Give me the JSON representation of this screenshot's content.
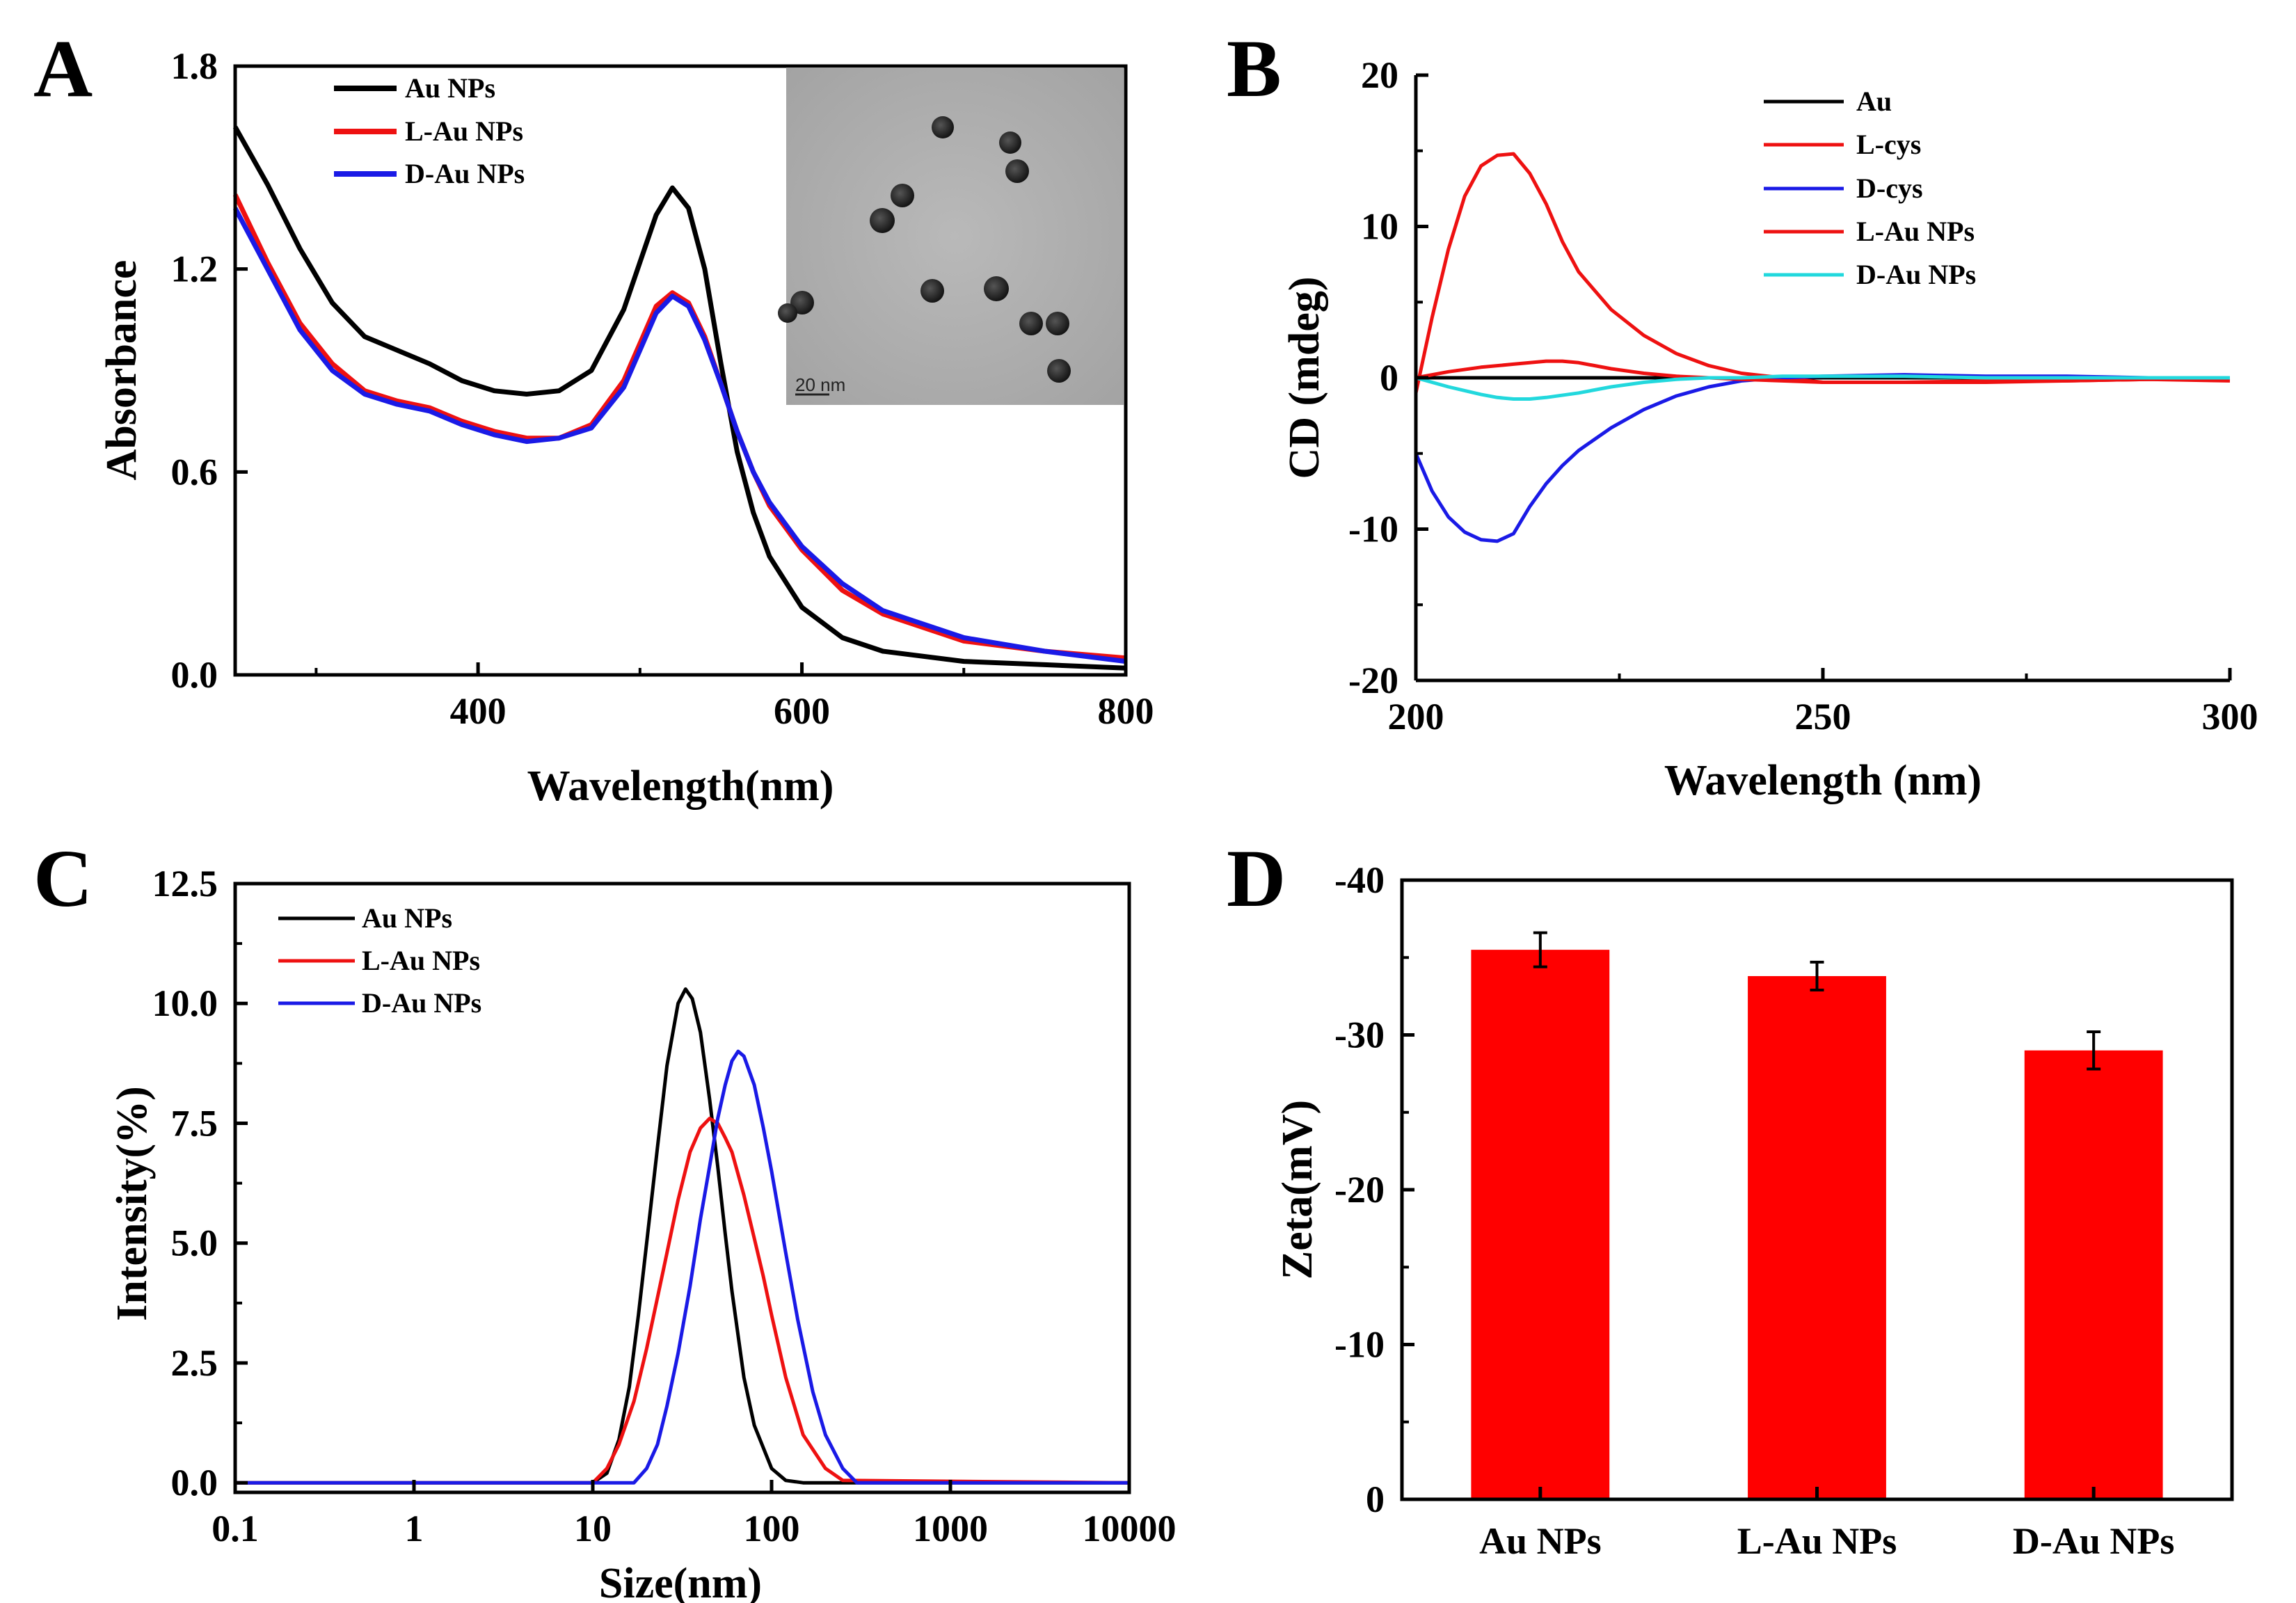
{
  "colors": {
    "black": "#000000",
    "red": "#ee1111",
    "blue": "#1a1ae6",
    "cyan": "#22d8dd",
    "bar": "#ff0000"
  },
  "chart_data": [
    {
      "panel": "A",
      "type": "line",
      "xlabel": "Wavelength(nm)",
      "ylabel": "Absorbance",
      "xlim": [
        250,
        800
      ],
      "ylim": [
        0.0,
        1.8
      ],
      "xticks": [
        400,
        600,
        800
      ],
      "yticks": [
        0.0,
        0.6,
        1.2,
        1.8
      ],
      "ytick_labels": [
        "0.0",
        "0.6",
        "1.2",
        "1.8"
      ],
      "inset": {
        "description": "TEM image of Au nanoparticles",
        "scale_bar": "20 nm"
      },
      "series": [
        {
          "name": "Au NPs",
          "color": "#000000",
          "x": [
            250,
            270,
            290,
            310,
            330,
            350,
            370,
            390,
            410,
            430,
            450,
            470,
            490,
            500,
            510,
            520,
            530,
            540,
            550,
            560,
            570,
            580,
            600,
            625,
            650,
            700,
            750,
            800
          ],
          "y": [
            1.62,
            1.45,
            1.26,
            1.1,
            1.0,
            0.96,
            0.92,
            0.87,
            0.84,
            0.83,
            0.84,
            0.9,
            1.08,
            1.22,
            1.36,
            1.44,
            1.38,
            1.2,
            0.92,
            0.66,
            0.48,
            0.35,
            0.2,
            0.11,
            0.07,
            0.04,
            0.03,
            0.02
          ]
        },
        {
          "name": "L-Au NPs",
          "color": "#ee1111",
          "x": [
            250,
            270,
            290,
            310,
            330,
            350,
            370,
            390,
            410,
            430,
            450,
            470,
            490,
            500,
            510,
            520,
            530,
            540,
            550,
            560,
            570,
            580,
            600,
            625,
            650,
            700,
            750,
            800
          ],
          "y": [
            1.42,
            1.22,
            1.04,
            0.92,
            0.84,
            0.81,
            0.79,
            0.75,
            0.72,
            0.7,
            0.7,
            0.74,
            0.87,
            0.98,
            1.09,
            1.13,
            1.1,
            1.0,
            0.86,
            0.72,
            0.6,
            0.5,
            0.37,
            0.25,
            0.18,
            0.1,
            0.07,
            0.05
          ]
        },
        {
          "name": "D-Au NPs",
          "color": "#1a1ae6",
          "x": [
            250,
            270,
            290,
            310,
            330,
            350,
            370,
            390,
            410,
            430,
            450,
            470,
            490,
            500,
            510,
            520,
            530,
            540,
            550,
            560,
            570,
            580,
            600,
            625,
            650,
            700,
            750,
            800
          ],
          "y": [
            1.38,
            1.2,
            1.02,
            0.9,
            0.83,
            0.8,
            0.78,
            0.74,
            0.71,
            0.69,
            0.7,
            0.73,
            0.85,
            0.96,
            1.07,
            1.12,
            1.09,
            0.99,
            0.86,
            0.72,
            0.6,
            0.51,
            0.38,
            0.27,
            0.19,
            0.11,
            0.07,
            0.04
          ]
        }
      ]
    },
    {
      "panel": "B",
      "type": "line",
      "xlabel": "Wavelength (nm)",
      "ylabel": "CD (mdeg)",
      "xlim": [
        200,
        300
      ],
      "ylim": [
        -20,
        20
      ],
      "xticks": [
        200,
        250,
        300
      ],
      "yticks": [
        -20,
        -10,
        0,
        10,
        20
      ],
      "ytick_labels": [
        "-20",
        "-10",
        "0",
        "10",
        "20"
      ],
      "series": [
        {
          "name": "Au",
          "color": "#000000",
          "x": [
            200,
            225,
            250,
            275,
            300
          ],
          "y": [
            0,
            0,
            0,
            0,
            0
          ]
        },
        {
          "name": "L-cys",
          "color": "#ee1111",
          "x": [
            200,
            202,
            204,
            206,
            208,
            210,
            212,
            214,
            216,
            218,
            220,
            224,
            228,
            232,
            236,
            240,
            245,
            250,
            260,
            270,
            280,
            290,
            300
          ],
          "y": [
            -1,
            4,
            8.5,
            12,
            14,
            14.7,
            14.8,
            13.5,
            11.5,
            9,
            7,
            4.5,
            2.8,
            1.6,
            0.8,
            0.3,
            0,
            -0.3,
            -0.3,
            -0.3,
            -0.2,
            -0.1,
            -0.2
          ]
        },
        {
          "name": "D-cys",
          "color": "#1a1ae6",
          "x": [
            200,
            202,
            204,
            206,
            208,
            210,
            212,
            214,
            216,
            218,
            220,
            224,
            228,
            232,
            236,
            240,
            245,
            250,
            260,
            270,
            280,
            290,
            300
          ],
          "y": [
            -5,
            -7.5,
            -9.2,
            -10.2,
            -10.7,
            -10.8,
            -10.3,
            -8.5,
            -7,
            -5.8,
            -4.8,
            -3.3,
            -2.1,
            -1.2,
            -0.6,
            -0.2,
            0,
            0.1,
            0.2,
            0.1,
            0.1,
            0,
            0
          ]
        },
        {
          "name": "L-Au NPs",
          "color": "#ee1111",
          "x": [
            200,
            204,
            208,
            212,
            216,
            218,
            220,
            224,
            228,
            232,
            236,
            240,
            245,
            250,
            260,
            270,
            280,
            290,
            300
          ],
          "y": [
            0,
            0.4,
            0.7,
            0.9,
            1.1,
            1.1,
            1.0,
            0.6,
            0.3,
            0.1,
            0,
            -0.1,
            -0.2,
            -0.3,
            -0.3,
            -0.2,
            -0.2,
            -0.1,
            -0.1
          ]
        },
        {
          "name": "D-Au NPs",
          "color": "#22d8dd",
          "x": [
            200,
            204,
            208,
            210,
            212,
            214,
            216,
            220,
            224,
            228,
            232,
            236,
            240,
            245,
            250,
            260,
            270,
            280,
            290,
            300
          ],
          "y": [
            0,
            -0.6,
            -1.1,
            -1.3,
            -1.4,
            -1.4,
            -1.3,
            -1.0,
            -0.6,
            -0.3,
            -0.1,
            0,
            0,
            0.1,
            0.1,
            0.1,
            0,
            0,
            0,
            0
          ]
        }
      ]
    },
    {
      "panel": "C",
      "type": "line",
      "xscale": "log",
      "xlabel": "Size(nm)",
      "ylabel": "Intensity(%)",
      "xlim": [
        0.1,
        10000
      ],
      "ylim": [
        -0.2,
        12.5
      ],
      "xticks": [
        0.1,
        1,
        10,
        100,
        1000,
        10000
      ],
      "xtick_labels": [
        "0.1",
        "1",
        "10",
        "100",
        "1000",
        "10000"
      ],
      "yticks": [
        0.0,
        2.5,
        5.0,
        7.5,
        10.0,
        12.5
      ],
      "ytick_labels": [
        "0.0",
        "2.5",
        "5.0",
        "7.5",
        "10.0",
        "12.5"
      ],
      "series": [
        {
          "name": "Au NPs",
          "color": "#000000",
          "x": [
            0.1,
            10,
            12,
            14,
            16,
            18,
            20,
            23,
            26,
            30,
            33,
            36,
            40,
            45,
            50,
            55,
            60,
            70,
            80,
            100,
            120,
            150,
            10000
          ],
          "y": [
            0,
            0,
            0.2,
            0.9,
            2.0,
            3.5,
            5.0,
            7.0,
            8.7,
            10.0,
            10.3,
            10.1,
            9.4,
            8.0,
            6.6,
            5.2,
            4.0,
            2.2,
            1.2,
            0.3,
            0.05,
            0,
            0
          ]
        },
        {
          "name": "L-Au NPs",
          "color": "#ee1111",
          "x": [
            0.1,
            10,
            12,
            14,
            17,
            20,
            25,
            30,
            35,
            40,
            45,
            50,
            55,
            60,
            70,
            80,
            90,
            100,
            120,
            150,
            200,
            250,
            10000
          ],
          "y": [
            0,
            0,
            0.3,
            0.8,
            1.7,
            2.8,
            4.5,
            5.9,
            6.9,
            7.4,
            7.6,
            7.5,
            7.2,
            6.9,
            6.0,
            5.1,
            4.3,
            3.5,
            2.2,
            1.0,
            0.3,
            0.05,
            0
          ]
        },
        {
          "name": "D-Au NPs",
          "color": "#1a1ae6",
          "x": [
            0.1,
            17,
            20,
            23,
            26,
            30,
            35,
            40,
            45,
            50,
            55,
            60,
            65,
            70,
            80,
            90,
            100,
            120,
            140,
            170,
            200,
            250,
            300,
            10000
          ],
          "y": [
            0,
            0,
            0.3,
            0.8,
            1.6,
            2.7,
            4.1,
            5.5,
            6.6,
            7.6,
            8.3,
            8.8,
            9.0,
            8.9,
            8.3,
            7.4,
            6.5,
            4.8,
            3.4,
            1.9,
            1.0,
            0.3,
            0,
            0
          ]
        }
      ]
    },
    {
      "panel": "D",
      "type": "bar",
      "ylabel": "Zeta(mV)",
      "ylim": [
        0,
        -40
      ],
      "yticks": [
        0,
        -10,
        -20,
        -30,
        -40
      ],
      "ytick_labels": [
        "0",
        "-10",
        "-20",
        "-30",
        "-40"
      ],
      "categories": [
        "Au NPs",
        "L-Au NPs",
        "D-Au NPs"
      ],
      "values": [
        -35.5,
        -33.8,
        -29.0
      ],
      "errors": [
        1.1,
        0.9,
        1.2
      ],
      "color": "#ff0000"
    }
  ]
}
